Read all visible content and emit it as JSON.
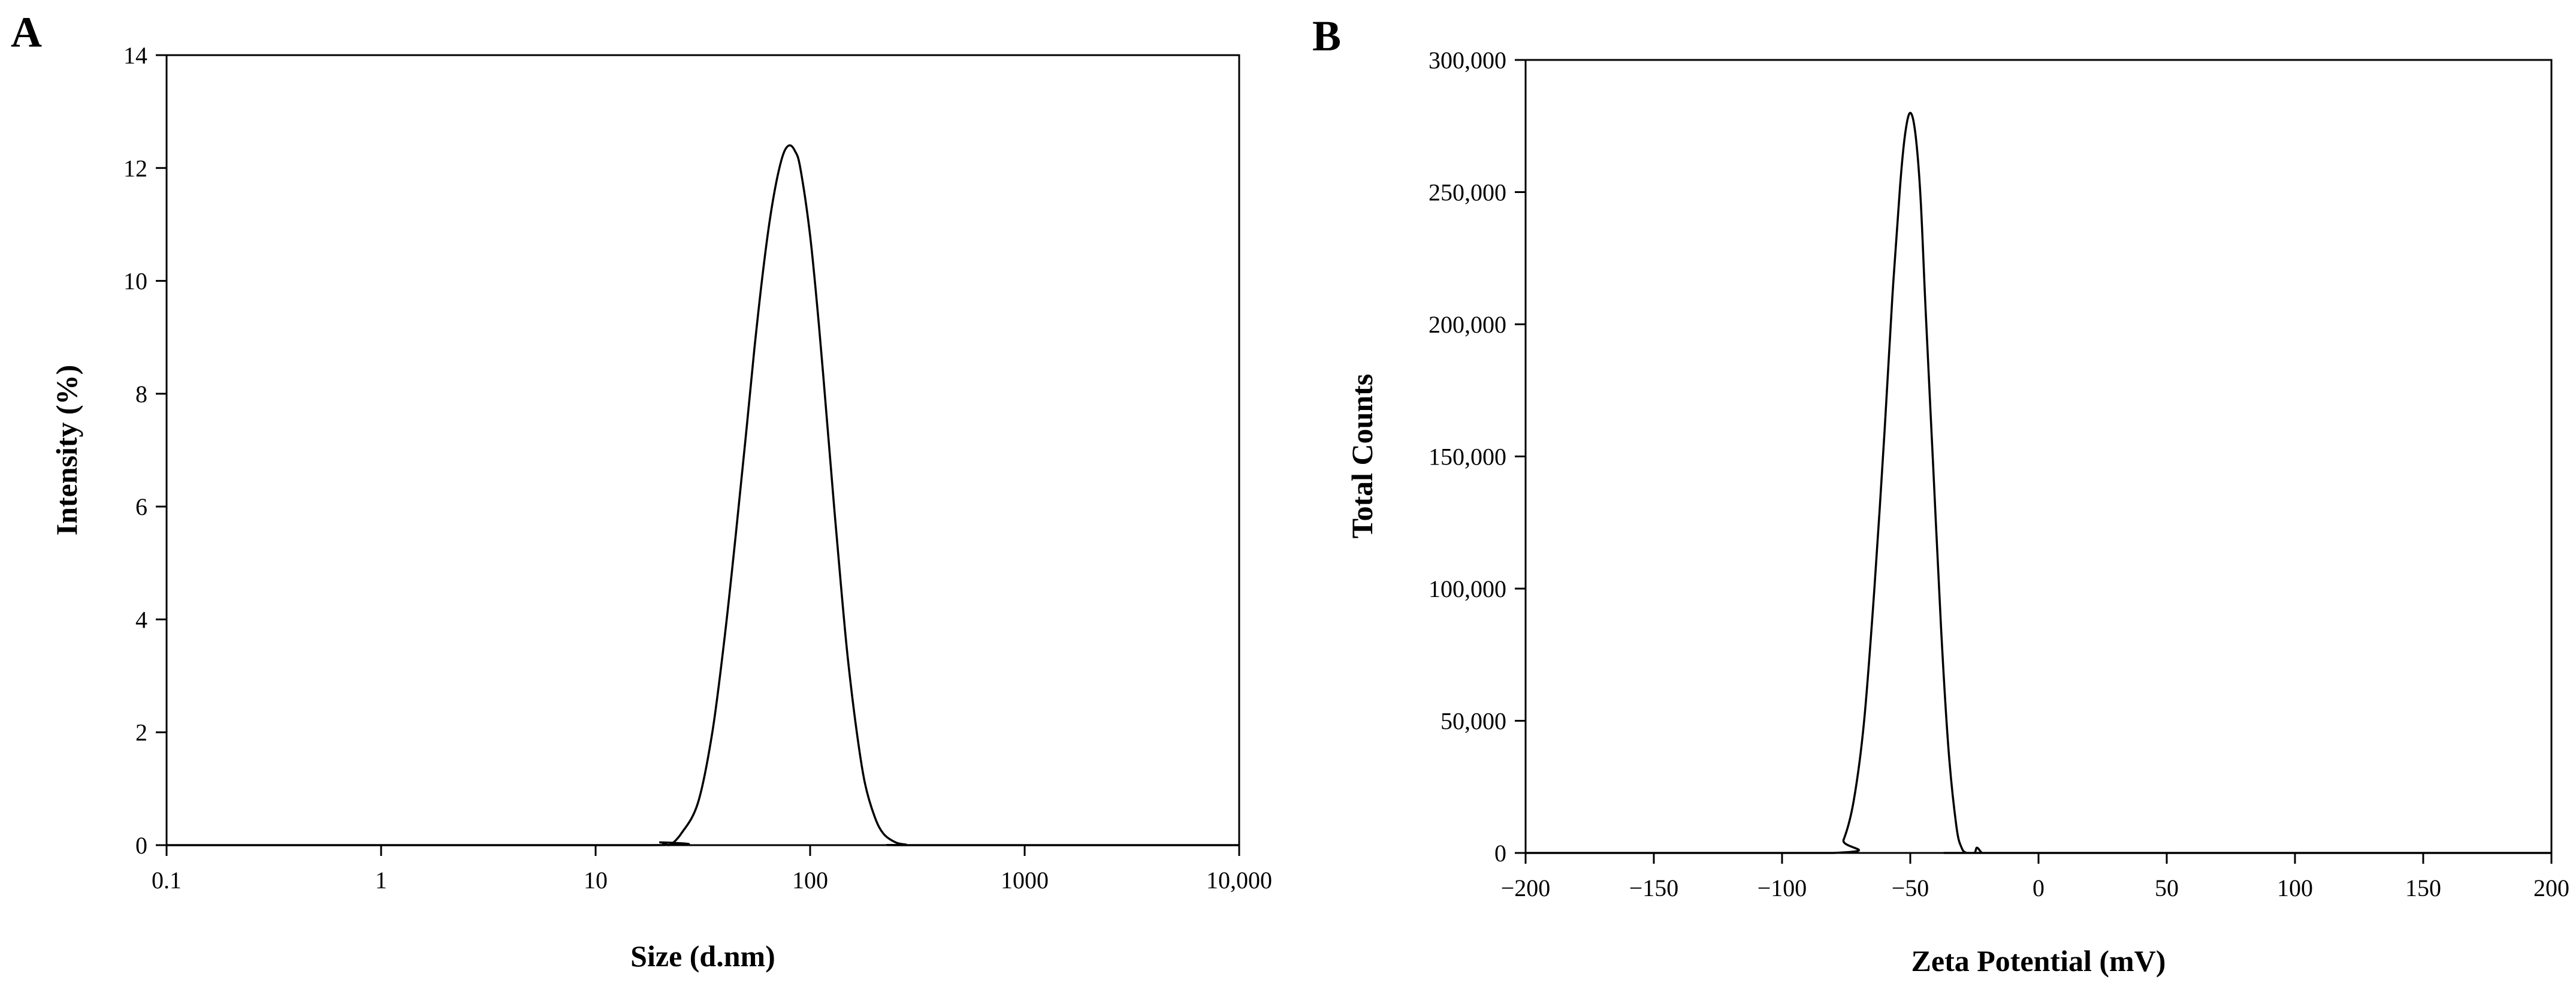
{
  "chart_data": [
    {
      "panel": "A",
      "type": "line",
      "xlabel": "Size (d.nm)",
      "ylabel": "Intensity (%)",
      "x_scale": "log",
      "xlim": [
        0.1,
        10000
      ],
      "ylim": [
        0,
        14
      ],
      "x_ticks": [
        0.1,
        1,
        10,
        100,
        1000,
        10000
      ],
      "x_tick_labels": [
        "0.1",
        "1",
        "10",
        "100",
        "1000",
        "10,000"
      ],
      "y_ticks": [
        0,
        2,
        4,
        6,
        8,
        10,
        12,
        14
      ],
      "y_tick_labels": [
        "0",
        "2",
        "4",
        "6",
        "8",
        "10",
        "12",
        "14"
      ],
      "grid": false,
      "series": [
        {
          "x": [
            0.1,
            18,
            20,
            22,
            25,
            30,
            35,
            40,
            45,
            50,
            55,
            60,
            65,
            70,
            75,
            80,
            85,
            90,
            100,
            110,
            120,
            130,
            140,
            150,
            165,
            180,
            200,
            220,
            250,
            280,
            300,
            10000
          ],
          "y": [
            0,
            0,
            0.05,
            0,
            0.2,
            0.75,
            2.0,
            3.7,
            5.5,
            7.2,
            8.8,
            10.1,
            11.1,
            11.8,
            12.25,
            12.4,
            12.3,
            12.0,
            10.8,
            9.2,
            7.5,
            5.9,
            4.5,
            3.3,
            2.0,
            1.1,
            0.5,
            0.2,
            0.05,
            0.01,
            0,
            0
          ]
        }
      ]
    },
    {
      "panel": "B",
      "type": "line",
      "xlabel": "Zeta Potential (mV)",
      "ylabel": "Total Counts",
      "xlim": [
        -200,
        200
      ],
      "ylim": [
        0,
        300000
      ],
      "x_ticks": [
        -200,
        -150,
        -100,
        -50,
        0,
        50,
        100,
        150,
        200
      ],
      "x_tick_labels": [
        "−200",
        "−150",
        "−100",
        "−50",
        "0",
        "50",
        "100",
        "150",
        "200"
      ],
      "y_ticks": [
        0,
        50000,
        100000,
        150000,
        200000,
        250000,
        300000
      ],
      "y_tick_labels": [
        "0",
        "50,000",
        "100,000",
        "150,000",
        "200,000",
        "250,000",
        "300,000"
      ],
      "grid": false,
      "series": [
        {
          "x": [
            -200,
            -80,
            -76,
            -72,
            -68,
            -64,
            -60,
            -57,
            -54,
            -52,
            -50,
            -48,
            -46,
            -44,
            -41,
            -38,
            -35,
            -32,
            -30,
            -28,
            -25,
            -24,
            -22,
            -20,
            200
          ],
          "y": [
            0,
            0,
            5000,
            20000,
            50000,
            100000,
            160000,
            210000,
            252000,
            272000,
            280000,
            272000,
            248000,
            205000,
            145000,
            85000,
            38000,
            10000,
            2000,
            0,
            0,
            2000,
            0,
            0,
            0
          ]
        }
      ]
    }
  ]
}
